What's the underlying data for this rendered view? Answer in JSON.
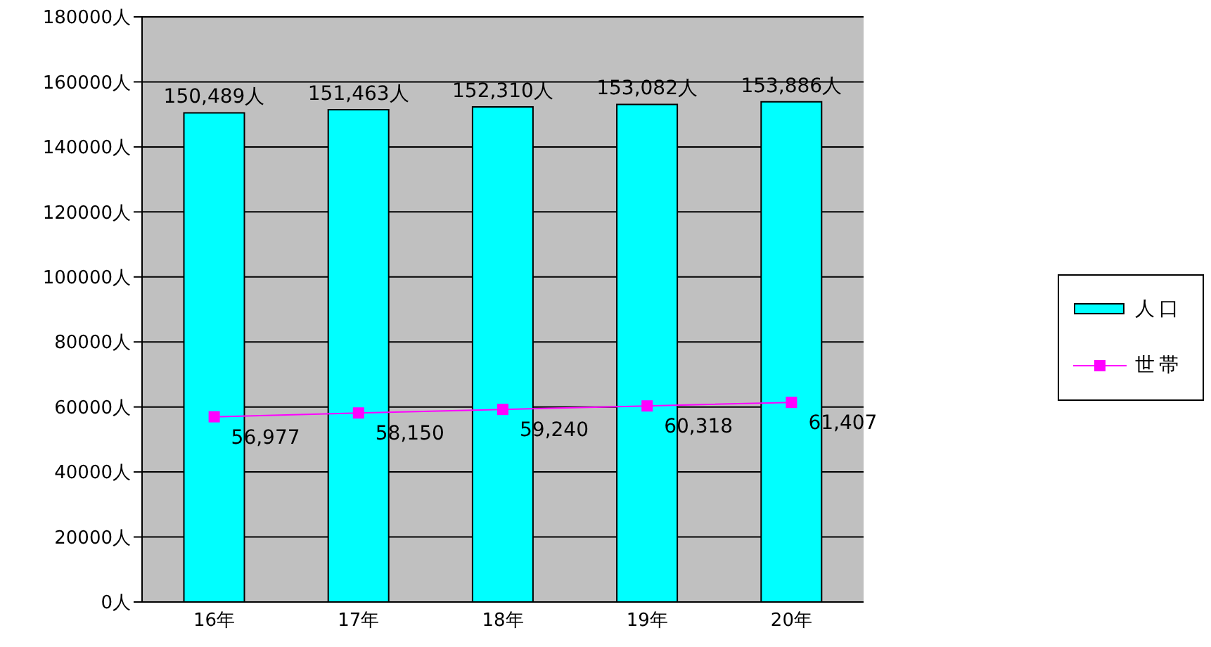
{
  "chart_data": {
    "type": "bar",
    "categories": [
      "16年",
      "17年",
      "18年",
      "19年",
      "20年"
    ],
    "series": [
      {
        "name": "人口",
        "color": "#00ffff",
        "values": [
          150489,
          151463,
          152310,
          153082,
          153886
        ],
        "value_labels": [
          "150,489人",
          "151,463人",
          "152,310人",
          "153,082人",
          "153,886人"
        ]
      },
      {
        "name": "世帯",
        "type": "line",
        "color": "#ff00ff",
        "values": [
          56977,
          58150,
          59240,
          60318,
          61407
        ],
        "value_labels": [
          "56,977",
          "58,150",
          "59,240",
          "60,318",
          "61,407"
        ]
      }
    ],
    "ylim": [
      0,
      180000
    ],
    "yticks": [
      {
        "value": 0,
        "label": "0人"
      },
      {
        "value": 20000,
        "label": "20000人"
      },
      {
        "value": 40000,
        "label": "40000人"
      },
      {
        "value": 60000,
        "label": "60000人"
      },
      {
        "value": 80000,
        "label": "80000人"
      },
      {
        "value": 100000,
        "label": "100000人"
      },
      {
        "value": 120000,
        "label": "120000人"
      },
      {
        "value": 140000,
        "label": "140000人"
      },
      {
        "value": 160000,
        "label": "160000人"
      },
      {
        "value": 180000,
        "label": "180000人"
      }
    ],
    "grid": "y",
    "legend": "right",
    "marker": "square"
  }
}
